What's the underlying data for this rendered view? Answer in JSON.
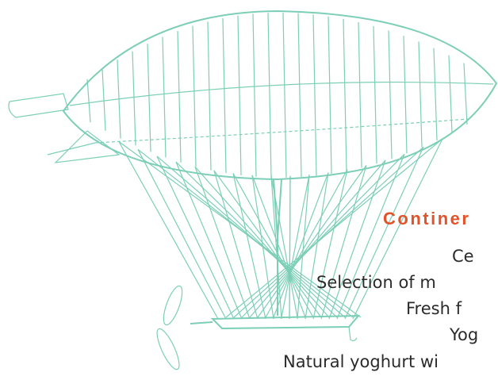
{
  "menu": {
    "heading": "Continer",
    "items": [
      "Ce",
      "Selection of m",
      "Fresh f",
      "Yog",
      "Natural yoghurt wi"
    ]
  }
}
